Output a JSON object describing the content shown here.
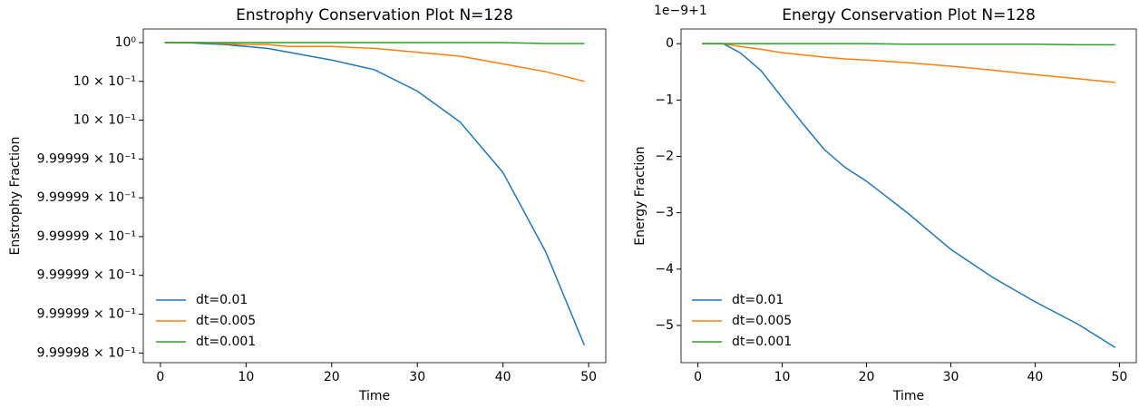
{
  "chart_data": [
    {
      "type": "line",
      "title": "Enstrophy Conservation Plot N=128",
      "xlabel": "Time",
      "ylabel": "Enstrophy Fraction",
      "log_scale_y": true,
      "grid": false,
      "legend": "lower left",
      "x": [
        0.5,
        3,
        5,
        7.5,
        10,
        12.5,
        15,
        17.5,
        20,
        25,
        30,
        35,
        40,
        45,
        49.5
      ],
      "series": [
        {
          "name": "dt=0.01",
          "color": "#1f77b4",
          "values": [
            1,
            1,
            0.999999995,
            0.99999999,
            0.99999998,
            0.99999997,
            0.99999995,
            0.99999993,
            0.99999991,
            0.99999986,
            0.99999975,
            0.99999959,
            0.99999933,
            0.99999892,
            0.99999844
          ]
        },
        {
          "name": "dt=0.005",
          "color": "#ff7f0e",
          "values": [
            1,
            1,
            1,
            0.999999995,
            0.99999999,
            0.99999999,
            0.99999998,
            0.99999998,
            0.99999998,
            0.99999997,
            0.99999995,
            0.99999993,
            0.99999989,
            0.99999985,
            0.9999998
          ]
        },
        {
          "name": "dt=0.001",
          "color": "#2ca02c",
          "values": [
            1,
            1,
            1,
            1,
            1,
            1,
            1,
            1,
            1,
            1,
            1,
            1,
            1,
            0.999999995,
            0.999999995
          ]
        }
      ],
      "xlim": [
        -2,
        52
      ],
      "xticks": [
        0,
        10,
        20,
        30,
        40,
        50
      ],
      "ylim": [
        0.99999835,
        1.00000007
      ],
      "yticks": [
        {
          "value": 1,
          "label": "10⁰"
        },
        {
          "value": 0.9999998,
          "label": "10 × 10⁻¹"
        },
        {
          "value": 0.9999996,
          "label": "10 × 10⁻¹"
        },
        {
          "value": 0.9999994,
          "label": "9.99999 × 10⁻¹"
        },
        {
          "value": 0.9999992,
          "label": "9.99999 × 10⁻¹"
        },
        {
          "value": 0.999999,
          "label": "9.99999 × 10⁻¹"
        },
        {
          "value": 0.9999988,
          "label": "9.99999 × 10⁻¹"
        },
        {
          "value": 0.9999986,
          "label": "9.99999 × 10⁻¹"
        },
        {
          "value": 0.9999984,
          "label": "9.99998 × 10⁻¹"
        }
      ]
    },
    {
      "type": "line",
      "title": "Energy Conservation Plot N=128",
      "xlabel": "Time",
      "ylabel": "Energy Fraction",
      "offset_label": "1e−9+1",
      "log_scale_y": false,
      "grid": false,
      "legend": "lower left",
      "x": [
        0.5,
        3,
        5,
        7.5,
        10,
        12.5,
        15,
        17.5,
        20,
        25,
        30,
        35,
        40,
        45,
        49.5
      ],
      "series": [
        {
          "name": "dt=0.01",
          "color": "#1f77b4",
          "values": [
            0,
            0,
            -0.16,
            -0.48,
            -0.96,
            -1.43,
            -1.88,
            -2.2,
            -2.44,
            -3.02,
            -3.65,
            -4.15,
            -4.58,
            -4.97,
            -5.39
          ]
        },
        {
          "name": "dt=0.005",
          "color": "#ff7f0e",
          "values": [
            0,
            0,
            -0.05,
            -0.1,
            -0.16,
            -0.2,
            -0.24,
            -0.27,
            -0.29,
            -0.34,
            -0.4,
            -0.47,
            -0.55,
            -0.62,
            -0.69
          ]
        },
        {
          "name": "dt=0.001",
          "color": "#2ca02c",
          "values": [
            0,
            0,
            0,
            0,
            0,
            0,
            0,
            0,
            0,
            -0.01,
            -0.01,
            -0.01,
            -0.01,
            -0.02,
            -0.02
          ]
        }
      ],
      "xlim": [
        -2,
        52
      ],
      "xticks": [
        0,
        10,
        20,
        30,
        40,
        50
      ],
      "ylim": [
        -5.66,
        0.26
      ],
      "yticks": [
        0,
        {
          "value": -1,
          "label": "−1"
        },
        {
          "value": -2,
          "label": "−2"
        },
        {
          "value": -3,
          "label": "−3"
        },
        {
          "value": -4,
          "label": "−4"
        },
        {
          "value": -5,
          "label": "−5"
        }
      ]
    }
  ]
}
